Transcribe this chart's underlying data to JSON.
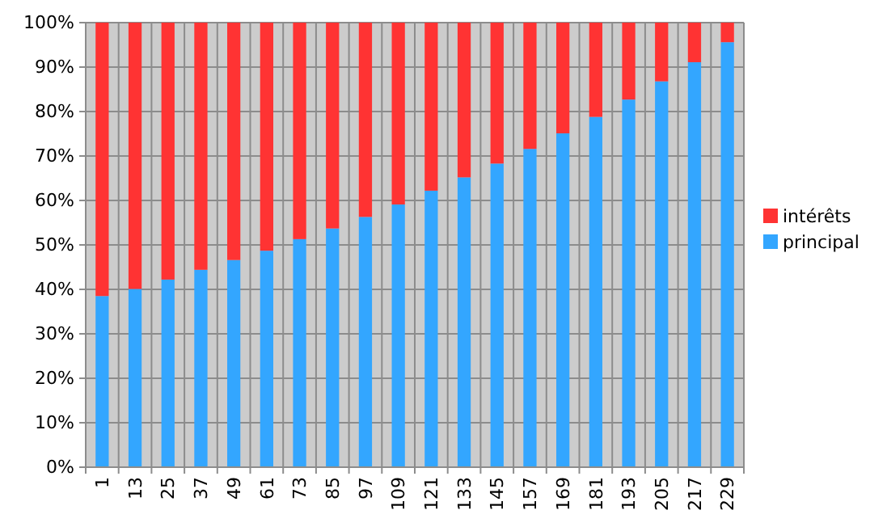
{
  "chart_data": {
    "type": "bar",
    "stacked": true,
    "categories": [
      "1",
      "13",
      "25",
      "37",
      "49",
      "61",
      "73",
      "85",
      "97",
      "109",
      "121",
      "133",
      "145",
      "157",
      "169",
      "181",
      "193",
      "205",
      "217",
      "229"
    ],
    "series": [
      {
        "name": "principal",
        "color": "#33a6ff",
        "values": [
          38.5,
          40.1,
          42.2,
          44.4,
          46.6,
          48.7,
          51.3,
          53.7,
          56.3,
          59.1,
          62.2,
          65.2,
          68.3,
          71.6,
          75.1,
          78.8,
          82.7,
          86.8,
          91.1,
          95.6
        ]
      },
      {
        "name": "intérêts",
        "color": "#ff3333",
        "values": [
          61.5,
          59.9,
          57.8,
          55.6,
          53.4,
          51.3,
          48.7,
          46.3,
          43.7,
          40.9,
          37.8,
          34.8,
          31.7,
          28.4,
          24.9,
          21.2,
          17.3,
          13.2,
          8.9,
          4.4
        ]
      }
    ],
    "ylim": [
      0,
      100
    ],
    "yticks": [
      {
        "value": 0,
        "label": "0%"
      },
      {
        "value": 10,
        "label": "10%"
      },
      {
        "value": 20,
        "label": "20%"
      },
      {
        "value": 30,
        "label": "30%"
      },
      {
        "value": 40,
        "label": "40%"
      },
      {
        "value": 50,
        "label": "50%"
      },
      {
        "value": 60,
        "label": "60%"
      },
      {
        "value": 70,
        "label": "70%"
      },
      {
        "value": 80,
        "label": "80%"
      },
      {
        "value": 90,
        "label": "90%"
      },
      {
        "value": 100,
        "label": "100%"
      }
    ],
    "grid": true,
    "legend": "right"
  }
}
